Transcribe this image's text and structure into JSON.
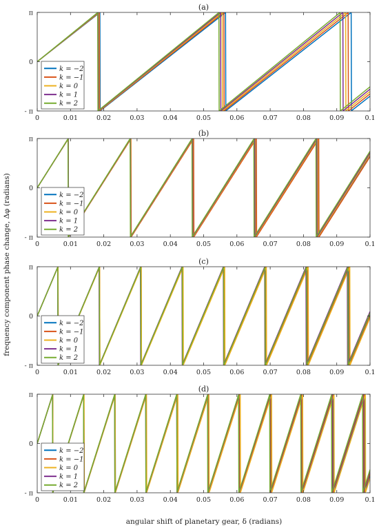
{
  "xlabel": "angular shift of planetary gear, δ (radians)",
  "ylabel": "frequency component phase change, Δφ (radians)",
  "chart_data": [
    {
      "type": "line",
      "title": "(a)",
      "xlim": [
        0,
        0.1
      ],
      "ylim": [
        -3.14159,
        3.14159
      ],
      "x_ticks": [
        "0",
        "0.01",
        "0.02",
        "0.03",
        "0.04",
        "0.05",
        "0.06",
        "0.07",
        "0.08",
        "0.09",
        "0.1"
      ],
      "y_ticks": [
        "- π",
        "0",
        "π"
      ],
      "legend_position": "lower-left",
      "series": [
        {
          "name": "k = −2",
          "color": "#0072BD",
          "slope": 166.5,
          "offset": 0
        },
        {
          "name": "k = −1",
          "color": "#D95319",
          "slope": 168.0,
          "offset": 0
        },
        {
          "name": "k = 0",
          "color": "#EDB120",
          "slope": 169.5,
          "offset": 0
        },
        {
          "name": "k = 1",
          "color": "#7E2F8E",
          "slope": 171.0,
          "offset": 0
        },
        {
          "name": "k = 2",
          "color": "#77AC30",
          "slope": 172.5,
          "offset": 0
        }
      ]
    },
    {
      "type": "line",
      "title": "(b)",
      "xlim": [
        0,
        0.1
      ],
      "ylim": [
        -3.14159,
        3.14159
      ],
      "x_ticks": [
        "0",
        "0.01",
        "0.02",
        "0.03",
        "0.04",
        "0.05",
        "0.06",
        "0.07",
        "0.08",
        "0.09",
        "0.1"
      ],
      "y_ticks": [
        "- π",
        "0",
        "π"
      ],
      "legend_position": "lower-left",
      "series": [
        {
          "name": "k = −2",
          "color": "#0072BD",
          "slope": 335.0,
          "offset": 0
        },
        {
          "name": "k = −1",
          "color": "#D95319",
          "slope": 334.0,
          "offset": 0
        },
        {
          "name": "k = 0",
          "color": "#EDB120",
          "slope": 335.5,
          "offset": 0
        },
        {
          "name": "k = 1",
          "color": "#7E2F8E",
          "slope": 336.5,
          "offset": 0
        },
        {
          "name": "k = 2",
          "color": "#77AC30",
          "slope": 337.5,
          "offset": 0
        }
      ]
    },
    {
      "type": "line",
      "title": "(c)",
      "xlim": [
        0,
        0.1
      ],
      "ylim": [
        -3.14159,
        3.14159
      ],
      "x_ticks": [
        "0",
        "0.01",
        "0.02",
        "0.03",
        "0.04",
        "0.05",
        "0.06",
        "0.07",
        "0.08",
        "0.09",
        "0.1"
      ],
      "y_ticks": [
        "- π",
        "0",
        "π"
      ],
      "legend_position": "lower-left",
      "series": [
        {
          "name": "k = −2",
          "color": "#0072BD",
          "slope": 503.5,
          "offset": 0
        },
        {
          "name": "k = −1",
          "color": "#D95319",
          "slope": 502.5,
          "offset": 0
        },
        {
          "name": "k = 0",
          "color": "#EDB120",
          "slope": 501.5,
          "offset": 0
        },
        {
          "name": "k = 1",
          "color": "#7E2F8E",
          "slope": 505.5,
          "offset": 0
        },
        {
          "name": "k = 2",
          "color": "#77AC30",
          "slope": 504.5,
          "offset": 0
        }
      ]
    },
    {
      "type": "line",
      "title": "(d)",
      "xlim": [
        0,
        0.1
      ],
      "ylim": [
        -3.14159,
        3.14159
      ],
      "x_ticks": [
        "0",
        "0.01",
        "0.02",
        "0.03",
        "0.04",
        "0.05",
        "0.06",
        "0.07",
        "0.08",
        "0.09",
        "0.1"
      ],
      "y_ticks": [
        "- π",
        "0",
        "π"
      ],
      "legend_position": "lower-left",
      "series": [
        {
          "name": "k = −2",
          "color": "#0072BD",
          "slope": 670.5,
          "offset": 0
        },
        {
          "name": "k = −1",
          "color": "#D95319",
          "slope": 672.0,
          "offset": 0
        },
        {
          "name": "k = 0",
          "color": "#EDB120",
          "slope": 669.0,
          "offset": 0
        },
        {
          "name": "k = 1",
          "color": "#7E2F8E",
          "slope": 673.5,
          "offset": 0
        },
        {
          "name": "k = 2",
          "color": "#77AC30",
          "slope": 674.5,
          "offset": 0
        }
      ]
    }
  ]
}
